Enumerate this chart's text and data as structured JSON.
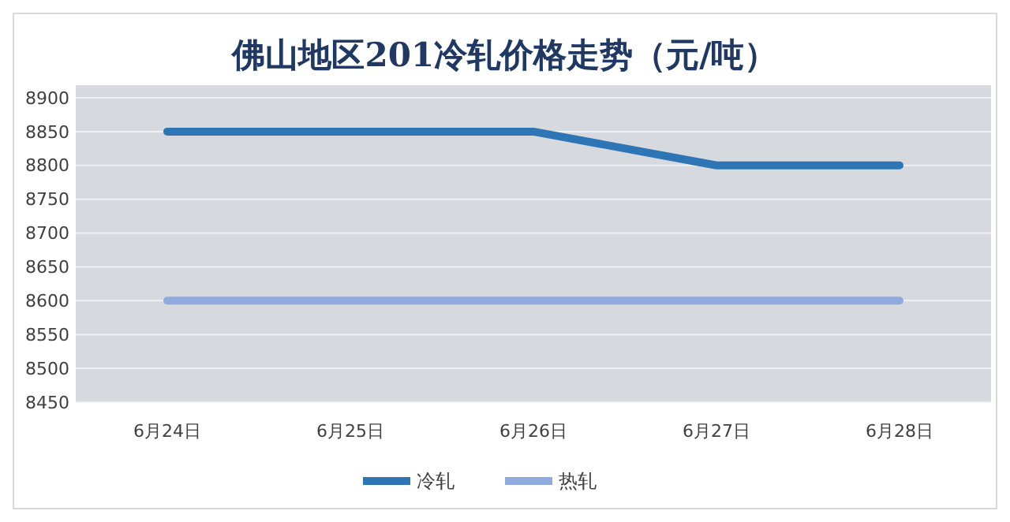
{
  "chart_data": {
    "type": "line",
    "title": "佛山地区201冷轧价格走势（元/吨）",
    "categories": [
      "6月24日",
      "6月25日",
      "6月26日",
      "6月27日",
      "6月28日"
    ],
    "series": [
      {
        "name": "冷轧",
        "color": "#2e75b6",
        "values": [
          8850,
          8850,
          8850,
          8800,
          8800
        ]
      },
      {
        "name": "热轧",
        "color": "#8faadc",
        "values": [
          8600,
          8600,
          8600,
          8600,
          8600
        ]
      }
    ],
    "ylim": [
      8450,
      8900
    ],
    "yticks": [
      8450,
      8500,
      8550,
      8600,
      8650,
      8700,
      8750,
      8800,
      8850,
      8900
    ],
    "grid": "y",
    "legend": "bottom",
    "marker": "none",
    "line_style": "solid"
  }
}
